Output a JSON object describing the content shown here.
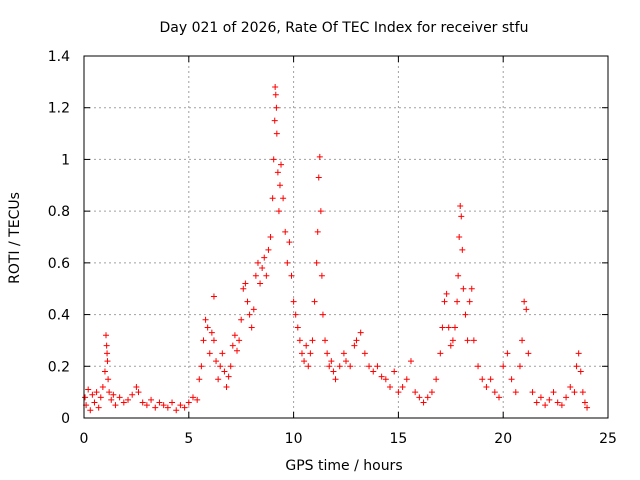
{
  "chart_data": {
    "type": "scatter",
    "title": "Day 021 of 2026, Rate Of TEC Index for receiver stfu",
    "xlabel": "GPS time / hours",
    "ylabel": "ROTI / TECUs",
    "xlim": [
      0,
      25
    ],
    "ylim": [
      0,
      1.4
    ],
    "xticks": [
      "0",
      "5",
      "10",
      "15",
      "20",
      "25"
    ],
    "xtick_values": [
      0,
      5,
      10,
      15,
      20,
      25
    ],
    "yticks": [
      "0",
      "0.2",
      "0.4",
      "0.6",
      "0.8",
      "1",
      "1.2",
      "1.4"
    ],
    "ytick_values": [
      0,
      0.2,
      0.4,
      0.6,
      0.8,
      1.0,
      1.2,
      1.4
    ],
    "grid": true,
    "marker": "plus",
    "color": "#ff0000",
    "note_on_points": "dense ROTI points across 0-24 h, each series a receiver-satellite track; values estimated from the plot",
    "series": [
      {
        "points": [
          [
            0.05,
            0.08
          ],
          [
            0.1,
            0.05
          ],
          [
            0.2,
            0.11
          ],
          [
            0.3,
            0.03
          ],
          [
            0.4,
            0.09
          ],
          [
            0.5,
            0.06
          ],
          [
            0.6,
            0.1
          ],
          [
            0.7,
            0.04
          ],
          [
            0.8,
            0.08
          ],
          [
            0.9,
            0.12
          ],
          [
            1.0,
            0.18
          ],
          [
            1.05,
            0.32
          ],
          [
            1.08,
            0.28
          ],
          [
            1.1,
            0.25
          ],
          [
            1.12,
            0.22
          ],
          [
            1.15,
            0.15
          ],
          [
            1.2,
            0.1
          ],
          [
            1.3,
            0.07
          ],
          [
            1.4,
            0.09
          ],
          [
            1.5,
            0.05
          ],
          [
            1.7,
            0.08
          ],
          [
            1.9,
            0.06
          ],
          [
            2.1,
            0.07
          ],
          [
            2.3,
            0.09
          ],
          [
            2.5,
            0.12
          ],
          [
            2.6,
            0.1
          ],
          [
            2.8,
            0.06
          ],
          [
            3.0,
            0.05
          ],
          [
            3.2,
            0.07
          ],
          [
            3.4,
            0.04
          ],
          [
            3.6,
            0.06
          ],
          [
            3.8,
            0.05
          ],
          [
            4.0,
            0.04
          ],
          [
            4.2,
            0.06
          ],
          [
            4.4,
            0.03
          ],
          [
            4.6,
            0.05
          ],
          [
            4.8,
            0.04
          ],
          [
            5.0,
            0.06
          ],
          [
            5.2,
            0.08
          ],
          [
            5.4,
            0.07
          ],
          [
            5.5,
            0.15
          ],
          [
            5.6,
            0.2
          ],
          [
            5.7,
            0.3
          ],
          [
            5.8,
            0.38
          ],
          [
            5.9,
            0.35
          ],
          [
            6.0,
            0.25
          ],
          [
            6.1,
            0.33
          ],
          [
            6.2,
            0.3
          ],
          [
            6.3,
            0.22
          ],
          [
            6.4,
            0.15
          ],
          [
            6.2,
            0.47
          ],
          [
            6.5,
            0.2
          ],
          [
            6.6,
            0.25
          ],
          [
            6.7,
            0.18
          ],
          [
            6.8,
            0.12
          ],
          [
            6.9,
            0.16
          ],
          [
            7.0,
            0.2
          ],
          [
            7.1,
            0.28
          ],
          [
            7.2,
            0.32
          ],
          [
            7.3,
            0.26
          ],
          [
            7.4,
            0.3
          ],
          [
            7.5,
            0.38
          ],
          [
            7.6,
            0.5
          ],
          [
            7.7,
            0.52
          ],
          [
            7.8,
            0.45
          ],
          [
            7.9,
            0.4
          ],
          [
            8.0,
            0.35
          ],
          [
            8.1,
            0.42
          ],
          [
            8.2,
            0.55
          ],
          [
            8.3,
            0.6
          ],
          [
            8.4,
            0.52
          ],
          [
            8.5,
            0.58
          ],
          [
            8.6,
            0.62
          ],
          [
            8.7,
            0.55
          ],
          [
            8.8,
            0.65
          ],
          [
            8.9,
            0.7
          ],
          [
            9.0,
            0.85
          ],
          [
            9.05,
            1.0
          ],
          [
            9.1,
            1.15
          ],
          [
            9.12,
            1.28
          ],
          [
            9.15,
            1.25
          ],
          [
            9.18,
            1.2
          ],
          [
            9.2,
            1.1
          ],
          [
            9.25,
            0.95
          ],
          [
            9.3,
            0.8
          ],
          [
            9.35,
            0.9
          ],
          [
            9.4,
            0.98
          ],
          [
            9.5,
            0.85
          ],
          [
            9.6,
            0.72
          ],
          [
            9.7,
            0.6
          ],
          [
            9.8,
            0.68
          ],
          [
            9.9,
            0.55
          ],
          [
            10.0,
            0.45
          ],
          [
            10.1,
            0.4
          ],
          [
            10.2,
            0.35
          ],
          [
            10.3,
            0.3
          ],
          [
            10.4,
            0.25
          ],
          [
            10.5,
            0.22
          ],
          [
            10.6,
            0.28
          ],
          [
            10.7,
            0.2
          ],
          [
            10.8,
            0.25
          ],
          [
            10.9,
            0.3
          ],
          [
            11.0,
            0.45
          ],
          [
            11.1,
            0.6
          ],
          [
            11.15,
            0.72
          ],
          [
            11.2,
            0.93
          ],
          [
            11.25,
            1.01
          ],
          [
            11.3,
            0.8
          ],
          [
            11.35,
            0.55
          ],
          [
            11.4,
            0.4
          ],
          [
            11.5,
            0.3
          ],
          [
            11.6,
            0.25
          ],
          [
            11.7,
            0.2
          ],
          [
            11.8,
            0.22
          ],
          [
            11.9,
            0.18
          ],
          [
            12.0,
            0.15
          ],
          [
            12.2,
            0.2
          ],
          [
            12.4,
            0.25
          ],
          [
            12.5,
            0.22
          ],
          [
            12.7,
            0.2
          ],
          [
            12.9,
            0.28
          ],
          [
            13.0,
            0.3
          ],
          [
            13.2,
            0.33
          ],
          [
            13.4,
            0.25
          ],
          [
            13.6,
            0.2
          ],
          [
            13.8,
            0.18
          ],
          [
            14.0,
            0.2
          ],
          [
            14.2,
            0.16
          ],
          [
            14.4,
            0.15
          ],
          [
            14.6,
            0.12
          ],
          [
            14.8,
            0.18
          ],
          [
            15.0,
            0.1
          ],
          [
            15.2,
            0.12
          ],
          [
            15.4,
            0.15
          ],
          [
            15.6,
            0.22
          ],
          [
            15.8,
            0.1
          ],
          [
            16.0,
            0.08
          ],
          [
            16.2,
            0.06
          ],
          [
            16.4,
            0.08
          ],
          [
            16.6,
            0.1
          ],
          [
            16.8,
            0.15
          ],
          [
            17.0,
            0.25
          ],
          [
            17.1,
            0.35
          ],
          [
            17.2,
            0.45
          ],
          [
            17.3,
            0.48
          ],
          [
            17.4,
            0.35
          ],
          [
            17.5,
            0.28
          ],
          [
            17.6,
            0.3
          ],
          [
            17.7,
            0.35
          ],
          [
            17.8,
            0.45
          ],
          [
            17.85,
            0.55
          ],
          [
            17.9,
            0.7
          ],
          [
            17.95,
            0.82
          ],
          [
            18.0,
            0.78
          ],
          [
            18.05,
            0.65
          ],
          [
            18.1,
            0.5
          ],
          [
            18.2,
            0.4
          ],
          [
            18.3,
            0.3
          ],
          [
            18.4,
            0.45
          ],
          [
            18.5,
            0.5
          ],
          [
            18.6,
            0.3
          ],
          [
            18.8,
            0.2
          ],
          [
            19.0,
            0.15
          ],
          [
            19.2,
            0.12
          ],
          [
            19.4,
            0.15
          ],
          [
            19.6,
            0.1
          ],
          [
            19.8,
            0.08
          ],
          [
            20.0,
            0.2
          ],
          [
            20.2,
            0.25
          ],
          [
            20.4,
            0.15
          ],
          [
            20.6,
            0.1
          ],
          [
            20.8,
            0.2
          ],
          [
            20.9,
            0.3
          ],
          [
            21.0,
            0.45
          ],
          [
            21.1,
            0.42
          ],
          [
            21.2,
            0.25
          ],
          [
            21.4,
            0.1
          ],
          [
            21.6,
            0.06
          ],
          [
            21.8,
            0.08
          ],
          [
            22.0,
            0.05
          ],
          [
            22.2,
            0.07
          ],
          [
            22.4,
            0.1
          ],
          [
            22.6,
            0.06
          ],
          [
            22.8,
            0.05
          ],
          [
            23.0,
            0.08
          ],
          [
            23.2,
            0.12
          ],
          [
            23.4,
            0.1
          ],
          [
            23.5,
            0.2
          ],
          [
            23.6,
            0.25
          ],
          [
            23.7,
            0.18
          ],
          [
            23.8,
            0.1
          ],
          [
            23.9,
            0.06
          ],
          [
            24.0,
            0.04
          ]
        ]
      }
    ]
  }
}
